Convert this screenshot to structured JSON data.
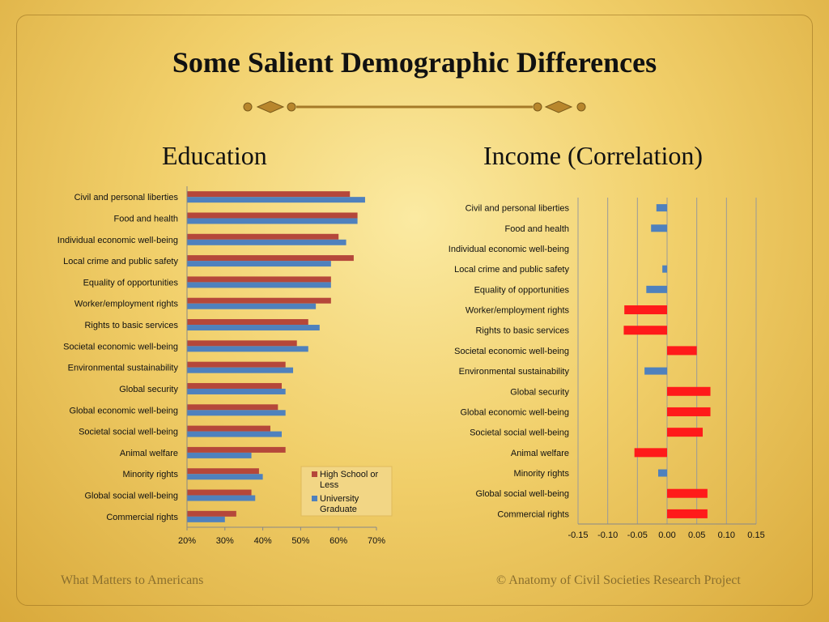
{
  "slide": {
    "title": "Some Salient Demographic Differences",
    "footer_left": "What Matters to Americans",
    "footer_right": "© Anatomy of Civil Societies Research Project"
  },
  "colors": {
    "high_school": "#b5473a",
    "university": "#4f81bd",
    "income": "#ff1a1a",
    "income_negative": "#4f81bd"
  },
  "chart_data": [
    {
      "type": "bar",
      "orientation": "horizontal",
      "title": "Education",
      "categories": [
        "Civil and personal liberties",
        "Food and health",
        "Individual economic well-being",
        "Local crime and public safety",
        "Equality of opportunities",
        "Worker/employment rights",
        "Rights to basic services",
        "Societal economic well-being",
        "Environmental sustainability",
        "Global security",
        "Global economic well-being",
        "Societal social well-being",
        "Animal welfare",
        "Minority rights",
        "Global social well-being",
        "Commercial rights"
      ],
      "series": [
        {
          "name": "High School or Less",
          "values": [
            63,
            65,
            60,
            64,
            58,
            58,
            52,
            49,
            46,
            45,
            44,
            42,
            46,
            39,
            37,
            33
          ]
        },
        {
          "name": "University Graduate",
          "values": [
            67,
            65,
            62,
            58,
            58,
            54,
            55,
            52,
            48,
            46,
            46,
            45,
            37,
            40,
            38,
            30
          ]
        }
      ],
      "xlim": [
        20,
        70
      ],
      "xticks": [
        "20%",
        "30%",
        "40%",
        "50%",
        "60%",
        "70%"
      ],
      "legend": "bottom-right"
    },
    {
      "type": "bar",
      "orientation": "horizontal",
      "title": "Income (Correlation)",
      "categories": [
        "Civil and personal liberties",
        "Food and health",
        "Individual economic well-being",
        "Local crime and public safety",
        "Equality of opportunities",
        "Worker/employment rights",
        "Rights to basic services",
        "Societal economic well-being",
        "Environmental sustainability",
        "Global security",
        "Global economic well-being",
        "Societal social well-being",
        "Animal welfare",
        "Minority rights",
        "Global social well-being",
        "Commercial rights"
      ],
      "values": [
        -0.018,
        -0.027,
        0,
        -0.008,
        -0.035,
        -0.072,
        -0.073,
        0.05,
        -0.038,
        0.073,
        0.073,
        0.06,
        -0.055,
        -0.015,
        0.068,
        0.068
      ],
      "xlim": [
        -0.15,
        0.15
      ],
      "xticks": [
        "-0.15",
        "-0.10",
        "-0.05",
        "0.00",
        "0.05",
        "0.10",
        "0.15"
      ],
      "grid": "vertical"
    }
  ]
}
